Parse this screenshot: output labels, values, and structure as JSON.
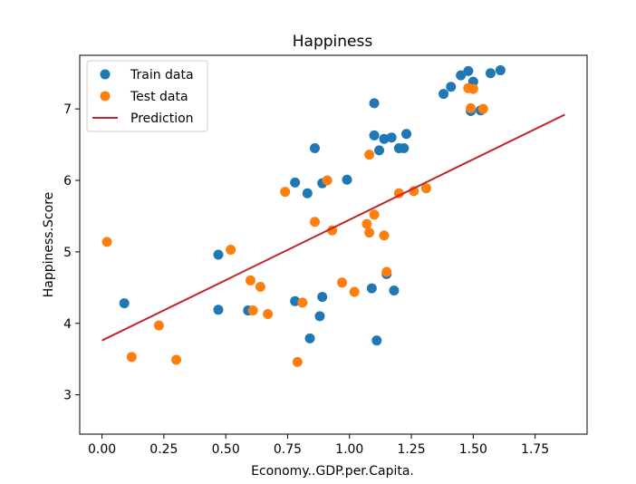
{
  "chart_data": {
    "type": "scatter",
    "title": "Happiness",
    "xlabel": "Economy..GDP.per.Capita.",
    "ylabel": "Happiness.Score",
    "xlim": [
      -0.09,
      1.96
    ],
    "ylim": [
      2.45,
      7.75
    ],
    "xticks": [
      "0.00",
      "0.25",
      "0.50",
      "0.75",
      "1.00",
      "1.25",
      "1.50",
      "1.75"
    ],
    "yticks": [
      "3",
      "4",
      "5",
      "6",
      "7"
    ],
    "grid": false,
    "legend_position": "top-left",
    "series": [
      {
        "name": "Train data",
        "kind": "scatter",
        "color": "#1f77b4",
        "points": [
          [
            0.09,
            4.28
          ],
          [
            0.47,
            4.96
          ],
          [
            0.47,
            4.19
          ],
          [
            0.59,
            4.18
          ],
          [
            0.78,
            5.97
          ],
          [
            0.78,
            4.31
          ],
          [
            0.83,
            5.82
          ],
          [
            0.84,
            3.79
          ],
          [
            0.86,
            6.45
          ],
          [
            0.88,
            4.1
          ],
          [
            0.89,
            4.37
          ],
          [
            0.89,
            5.96
          ],
          [
            0.99,
            6.01
          ],
          [
            1.09,
            4.49
          ],
          [
            1.1,
            6.63
          ],
          [
            1.1,
            7.08
          ],
          [
            1.11,
            3.76
          ],
          [
            1.12,
            6.42
          ],
          [
            1.14,
            6.58
          ],
          [
            1.15,
            4.69
          ],
          [
            1.17,
            6.6
          ],
          [
            1.18,
            4.46
          ],
          [
            1.2,
            6.45
          ],
          [
            1.22,
            6.45
          ],
          [
            1.23,
            6.65
          ],
          [
            1.38,
            7.21
          ],
          [
            1.41,
            7.31
          ],
          [
            1.45,
            7.47
          ],
          [
            1.48,
            7.53
          ],
          [
            1.49,
            6.97
          ],
          [
            1.5,
            7.38
          ],
          [
            1.53,
            6.98
          ],
          [
            1.57,
            7.5
          ],
          [
            1.61,
            7.54
          ]
        ]
      },
      {
        "name": "Test data",
        "kind": "scatter",
        "color": "#ff7f0e",
        "points": [
          [
            0.02,
            5.14
          ],
          [
            0.12,
            3.53
          ],
          [
            0.23,
            3.97
          ],
          [
            0.3,
            3.49
          ],
          [
            0.52,
            5.03
          ],
          [
            0.6,
            4.6
          ],
          [
            0.61,
            4.18
          ],
          [
            0.64,
            4.51
          ],
          [
            0.67,
            4.13
          ],
          [
            0.74,
            5.84
          ],
          [
            0.79,
            3.46
          ],
          [
            0.81,
            4.29
          ],
          [
            0.86,
            5.42
          ],
          [
            0.91,
            6.0
          ],
          [
            0.93,
            5.3
          ],
          [
            0.97,
            4.57
          ],
          [
            1.02,
            4.44
          ],
          [
            1.07,
            5.39
          ],
          [
            1.08,
            6.36
          ],
          [
            1.08,
            5.27
          ],
          [
            1.1,
            5.52
          ],
          [
            1.14,
            5.23
          ],
          [
            1.15,
            4.72
          ],
          [
            1.2,
            5.82
          ],
          [
            1.26,
            5.85
          ],
          [
            1.31,
            5.89
          ],
          [
            1.48,
            7.29
          ],
          [
            1.49,
            7.01
          ],
          [
            1.5,
            7.28
          ],
          [
            1.54,
            7.0
          ]
        ]
      },
      {
        "name": "Prediction",
        "kind": "line",
        "color": "#c0262b",
        "points": [
          [
            0.0,
            3.76
          ],
          [
            1.87,
            6.92
          ]
        ]
      }
    ]
  }
}
